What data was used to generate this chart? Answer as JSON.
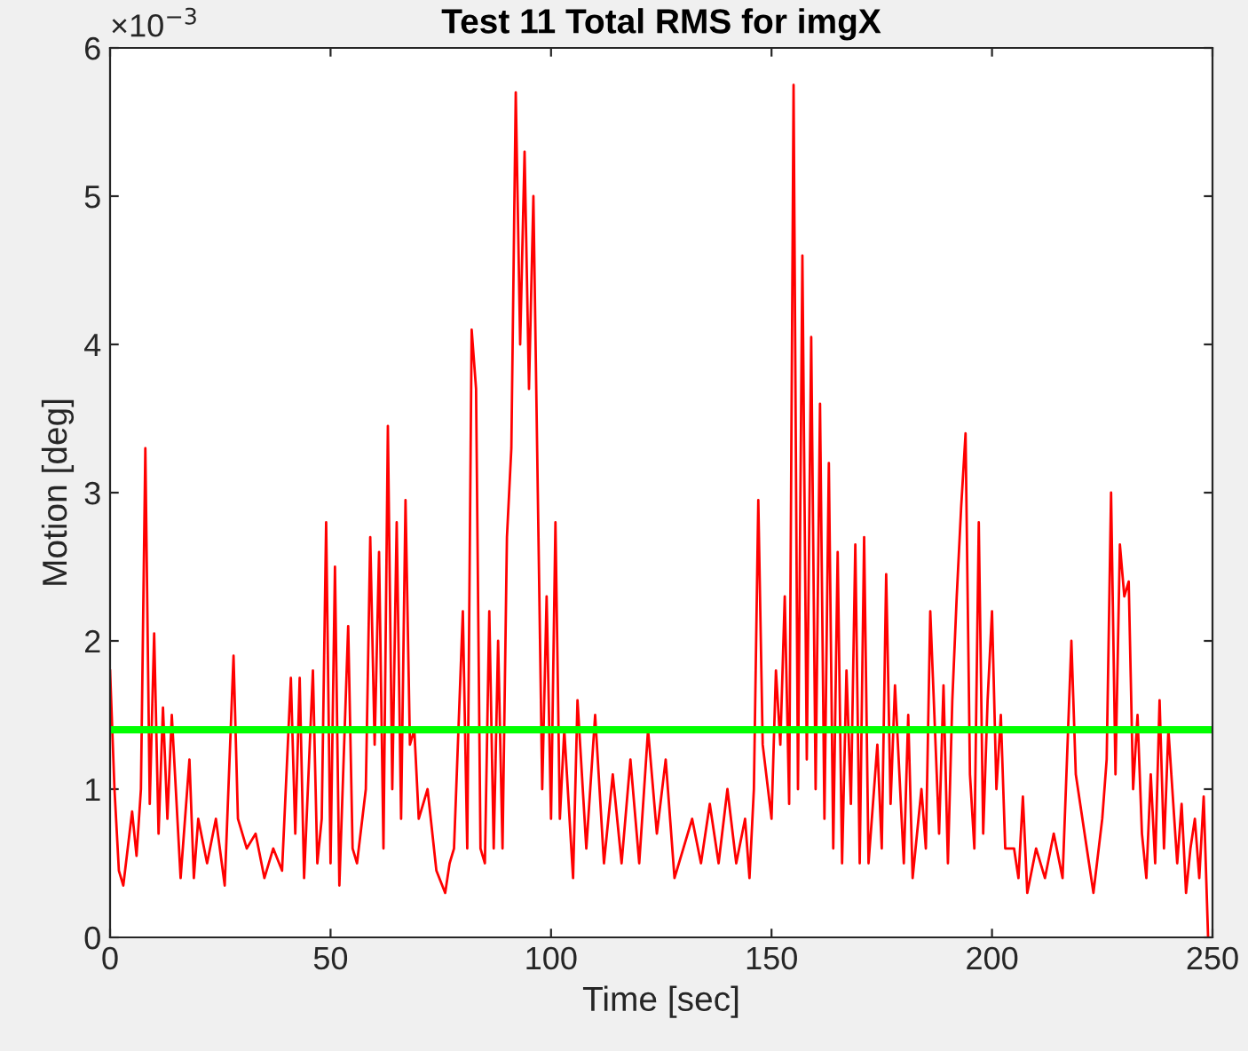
{
  "chart_data": {
    "type": "line",
    "title": "Test 11 Total RMS for imgX",
    "xlabel": "Time [sec]",
    "ylabel": "Motion [deg]",
    "annotations": [
      "×10$^{−3}$"
    ],
    "xlim": [
      0,
      250
    ],
    "xticks": [
      0,
      50,
      100,
      150,
      200,
      250
    ],
    "ylim": [
      0,
      6
    ],
    "yticks": [
      0,
      1,
      2,
      3,
      4,
      5,
      6
    ],
    "grid": false,
    "legend": false,
    "series": [
      {
        "color": "#ff0000",
        "x": [
          0,
          1,
          2,
          3,
          4,
          5,
          6,
          7,
          8,
          9,
          10,
          11,
          12,
          13,
          14,
          16,
          18,
          19,
          20,
          22,
          24,
          26,
          28,
          29,
          31,
          33,
          35,
          37,
          39,
          41,
          42,
          43,
          44,
          46,
          47,
          48,
          49,
          50,
          51,
          52,
          54,
          55,
          56,
          58,
          59,
          60,
          61,
          62,
          63,
          64,
          65,
          66,
          67,
          68,
          69,
          70,
          72,
          74,
          76,
          77,
          78,
          80,
          81,
          82,
          83,
          84,
          85,
          86,
          87,
          88,
          89,
          90,
          91,
          92,
          93,
          94,
          95,
          96,
          97,
          98,
          99,
          100,
          101,
          102,
          103,
          105,
          106,
          108,
          110,
          112,
          114,
          116,
          118,
          120,
          122,
          124,
          126,
          128,
          130,
          132,
          134,
          136,
          138,
          140,
          142,
          144,
          145,
          146,
          147,
          148,
          150,
          151,
          152,
          153,
          154,
          155,
          156,
          157,
          158,
          159,
          160,
          161,
          162,
          163,
          164,
          165,
          166,
          167,
          168,
          169,
          170,
          171,
          172,
          174,
          175,
          176,
          177,
          178,
          180,
          181,
          182,
          184,
          185,
          186,
          188,
          189,
          190,
          191,
          192,
          193,
          194,
          195,
          196,
          197,
          198,
          199,
          200,
          201,
          202,
          203,
          205,
          206,
          207,
          208,
          210,
          212,
          214,
          216,
          217,
          218,
          219,
          220,
          222,
          223,
          225,
          226,
          227,
          228,
          229,
          230,
          231,
          232,
          233,
          234,
          235,
          236,
          237,
          238,
          239,
          240,
          242,
          243,
          244,
          245,
          246,
          247,
          248,
          249
        ],
        "values": [
          1.8,
          1.0,
          0.45,
          0.35,
          0.6,
          0.85,
          0.55,
          1.0,
          3.3,
          0.9,
          2.05,
          0.7,
          1.55,
          0.8,
          1.5,
          0.4,
          1.2,
          0.4,
          0.8,
          0.5,
          0.8,
          0.35,
          1.9,
          0.8,
          0.6,
          0.7,
          0.4,
          0.6,
          0.45,
          1.75,
          0.7,
          1.75,
          0.4,
          1.8,
          0.5,
          0.8,
          2.8,
          0.5,
          2.5,
          0.35,
          2.1,
          0.6,
          0.5,
          1.0,
          2.7,
          1.3,
          2.6,
          0.6,
          3.45,
          1.0,
          2.8,
          0.8,
          2.95,
          1.3,
          1.4,
          0.8,
          1.0,
          0.45,
          0.3,
          0.5,
          0.6,
          2.2,
          0.6,
          4.1,
          3.7,
          0.6,
          0.5,
          2.2,
          0.6,
          2.0,
          0.6,
          2.7,
          3.3,
          5.7,
          4.0,
          5.3,
          3.7,
          5.0,
          3.0,
          1.0,
          2.3,
          0.8,
          2.8,
          0.8,
          1.4,
          0.4,
          1.6,
          0.6,
          1.5,
          0.5,
          1.1,
          0.5,
          1.2,
          0.5,
          1.4,
          0.7,
          1.2,
          0.4,
          0.6,
          0.8,
          0.5,
          0.9,
          0.5,
          1.0,
          0.5,
          0.8,
          0.4,
          1.0,
          2.95,
          1.3,
          0.8,
          1.8,
          1.3,
          2.3,
          0.9,
          5.75,
          1.0,
          4.6,
          1.2,
          4.05,
          1.0,
          3.6,
          0.8,
          3.2,
          0.6,
          2.6,
          0.5,
          1.8,
          0.9,
          2.65,
          0.5,
          2.7,
          0.5,
          1.3,
          0.6,
          2.45,
          0.9,
          1.7,
          0.5,
          1.5,
          0.4,
          1.0,
          0.6,
          2.2,
          0.7,
          1.7,
          0.5,
          1.6,
          2.3,
          2.9,
          3.4,
          1.1,
          0.6,
          2.8,
          0.7,
          1.6,
          2.2,
          1.0,
          1.5,
          0.6,
          0.6,
          0.4,
          0.95,
          0.3,
          0.6,
          0.4,
          0.7,
          0.4,
          1.2,
          2.0,
          1.1,
          0.9,
          0.5,
          0.3,
          0.8,
          1.2,
          3.0,
          1.1,
          2.65,
          2.3,
          2.4,
          1.0,
          1.5,
          0.7,
          0.4,
          1.1,
          0.5,
          1.6,
          0.6,
          1.4,
          0.5,
          0.9,
          0.3,
          0.6,
          0.8,
          0.4,
          0.95,
          0
        ]
      }
    ],
    "ref_lines": [
      {
        "axis": "y",
        "value": 1.4,
        "color": "#00ff00",
        "line_style": "solid"
      }
    ]
  }
}
